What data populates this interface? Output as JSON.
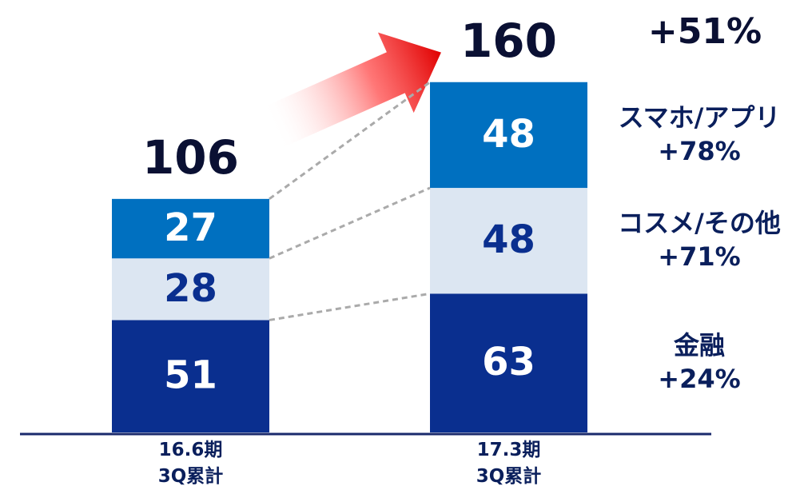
{
  "chart_data": {
    "type": "stacked_bar",
    "categories": [
      "16.6期\n3Q累計",
      "17.3期\n3Q累計"
    ],
    "series": [
      {
        "name": "金融",
        "color": "#0a2f8f",
        "values": [
          51,
          63
        ],
        "growth": "+24%"
      },
      {
        "name": "コスメ/その他",
        "color": "#dce6f2",
        "values": [
          28,
          48
        ],
        "growth": "+71%"
      },
      {
        "name": "スマホ/アプリ",
        "color": "#0070c0",
        "values": [
          27,
          48
        ],
        "growth": "+78%"
      }
    ],
    "totals": [
      106,
      160
    ],
    "total_growth": "+51%"
  }
}
